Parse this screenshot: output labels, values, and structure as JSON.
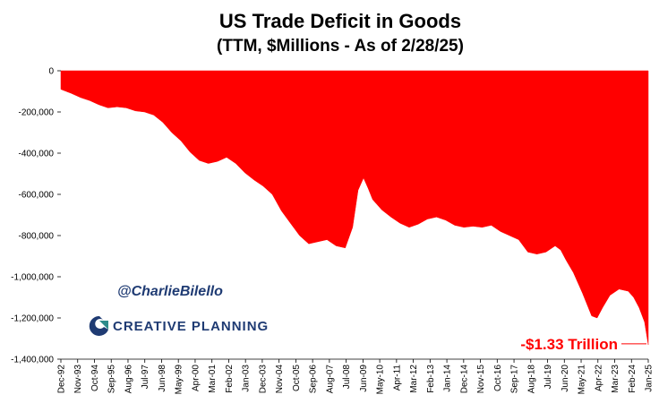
{
  "chart_data": {
    "type": "area",
    "title": "US Trade Deficit in Goods",
    "subtitle": "(TTM, $Millions - As of 2/28/25)",
    "xlabel": "",
    "ylabel": "",
    "ylim": [
      -1400000,
      0
    ],
    "yticks": [
      0,
      -200000,
      -400000,
      -600000,
      -800000,
      -1000000,
      -1200000,
      -1400000
    ],
    "ytick_labels": [
      "0",
      "-200,000",
      "-400,000",
      "-600,000",
      "-800,000",
      "-1,000,000",
      "-1,200,000",
      "-1,400,000"
    ],
    "xtick_labels": [
      "Dec-92",
      "Nov-93",
      "Oct-94",
      "Sep-95",
      "Aug-96",
      "Jul-97",
      "Jun-98",
      "May-99",
      "Apr-00",
      "Mar-01",
      "Feb-02",
      "Jan-03",
      "Dec-03",
      "Nov-04",
      "Oct-05",
      "Sep-06",
      "Aug-07",
      "Jul-08",
      "Jun-09",
      "May-10",
      "Apr-11",
      "Mar-12",
      "Feb-13",
      "Jan-14",
      "Dec-14",
      "Nov-15",
      "Oct-16",
      "Sep-17",
      "Aug-18",
      "Jul-19",
      "Jun-20",
      "May-21",
      "Apr-22",
      "Mar-23",
      "Feb-24",
      "Jan-25"
    ],
    "series": [
      {
        "name": "US Trade Deficit in Goods (TTM)",
        "color": "#ff0000",
        "x": [
          1992.92,
          1993.5,
          1994.0,
          1994.5,
          1995.0,
          1995.5,
          1996.0,
          1996.5,
          1997.0,
          1997.5,
          1998.0,
          1998.5,
          1999.0,
          1999.5,
          2000.0,
          2000.5,
          2001.0,
          2001.5,
          2002.0,
          2002.5,
          2003.0,
          2003.5,
          2004.0,
          2004.5,
          2005.0,
          2005.5,
          2006.0,
          2006.5,
          2007.0,
          2007.5,
          2008.0,
          2008.5,
          2008.9,
          2009.2,
          2009.5,
          2009.75,
          2010.0,
          2010.5,
          2011.0,
          2011.5,
          2012.0,
          2012.5,
          2013.0,
          2013.5,
          2014.0,
          2014.5,
          2015.0,
          2015.5,
          2016.0,
          2016.5,
          2017.0,
          2017.5,
          2018.0,
          2018.5,
          2019.0,
          2019.5,
          2020.0,
          2020.3,
          2020.6,
          2021.0,
          2021.5,
          2022.0,
          2022.3,
          2022.6,
          2023.0,
          2023.5,
          2024.0,
          2024.3,
          2024.6,
          2024.9,
          2025.1
        ],
        "values": [
          -90000,
          -110000,
          -130000,
          -145000,
          -165000,
          -180000,
          -175000,
          -180000,
          -195000,
          -200000,
          -215000,
          -250000,
          -300000,
          -340000,
          -395000,
          -435000,
          -450000,
          -440000,
          -420000,
          -450000,
          -495000,
          -530000,
          -560000,
          -600000,
          -680000,
          -740000,
          -800000,
          -840000,
          -830000,
          -820000,
          -850000,
          -860000,
          -760000,
          -580000,
          -520000,
          -570000,
          -625000,
          -675000,
          -710000,
          -740000,
          -760000,
          -745000,
          -720000,
          -710000,
          -725000,
          -750000,
          -760000,
          -755000,
          -760000,
          -750000,
          -780000,
          -800000,
          -820000,
          -880000,
          -890000,
          -880000,
          -850000,
          -870000,
          -920000,
          -980000,
          -1080000,
          -1190000,
          -1200000,
          -1150000,
          -1090000,
          -1060000,
          -1070000,
          -1100000,
          -1150000,
          -1220000,
          -1330000
        ]
      }
    ],
    "annotations": [
      {
        "text": "-$1.33 Trillion",
        "x": 2025.1,
        "y": -1330000,
        "color": "#ff0000"
      }
    ]
  },
  "watermark": "@CharlieBilello",
  "brand": {
    "name": "CREATIVE PLANNING",
    "logo_icon": "creative-planning-logo-icon",
    "color": "#1f3b73",
    "accent": "#2e8b8b"
  }
}
